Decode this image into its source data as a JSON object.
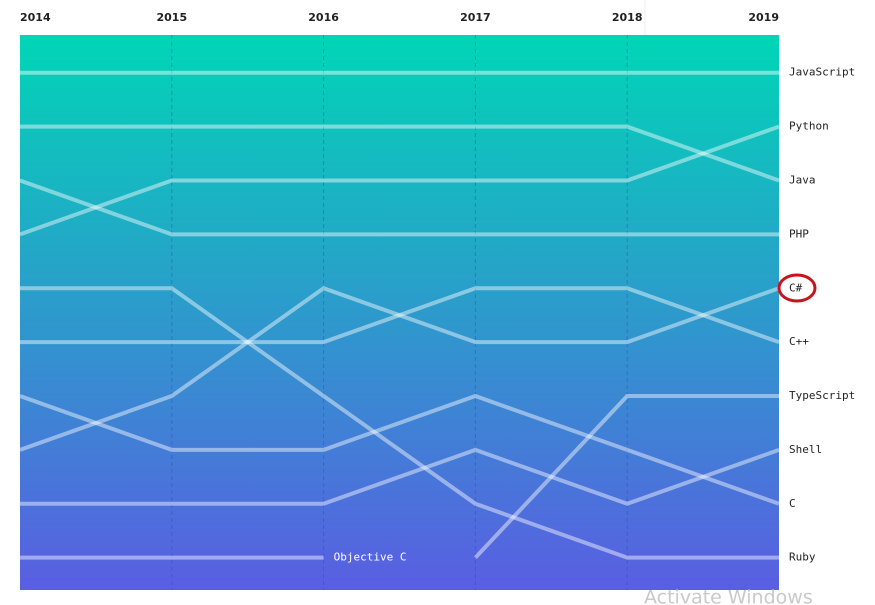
{
  "chart_data": {
    "type": "bump",
    "x": [
      2014,
      2015,
      2016,
      2017,
      2018,
      2019
    ],
    "ylim": [
      10.6,
      0.3
    ],
    "grid": true,
    "line_color": "#ffffff",
    "background_colors": [
      "#00d6b6",
      "#5a5ee2"
    ],
    "series": [
      {
        "name": "JavaScript",
        "values": [
          1,
          1,
          1,
          1,
          1,
          1
        ]
      },
      {
        "name": "Python",
        "values": [
          4,
          3,
          3,
          3,
          3,
          2
        ]
      },
      {
        "name": "Java",
        "values": [
          2,
          2,
          2,
          2,
          2,
          3
        ]
      },
      {
        "name": "PHP",
        "values": [
          3,
          4,
          4,
          4,
          4,
          4
        ]
      },
      {
        "name": "C#",
        "values": [
          8,
          7,
          5,
          6,
          6,
          5
        ]
      },
      {
        "name": "C++",
        "values": [
          6,
          6,
          6,
          5,
          5,
          6
        ]
      },
      {
        "name": "TypeScript",
        "values": [
          null,
          null,
          null,
          10,
          7,
          7
        ]
      },
      {
        "name": "Shell",
        "values": [
          9,
          9,
          9,
          8,
          9,
          8
        ]
      },
      {
        "name": "C",
        "values": [
          7,
          8,
          8,
          7,
          8,
          9
        ]
      },
      {
        "name": "Ruby",
        "values": [
          5,
          5,
          7,
          9,
          10,
          10
        ]
      },
      {
        "name": "Objective C",
        "values": [
          10,
          10,
          10,
          null,
          null,
          null
        ]
      }
    ]
  },
  "watermark": "Activate Windows"
}
